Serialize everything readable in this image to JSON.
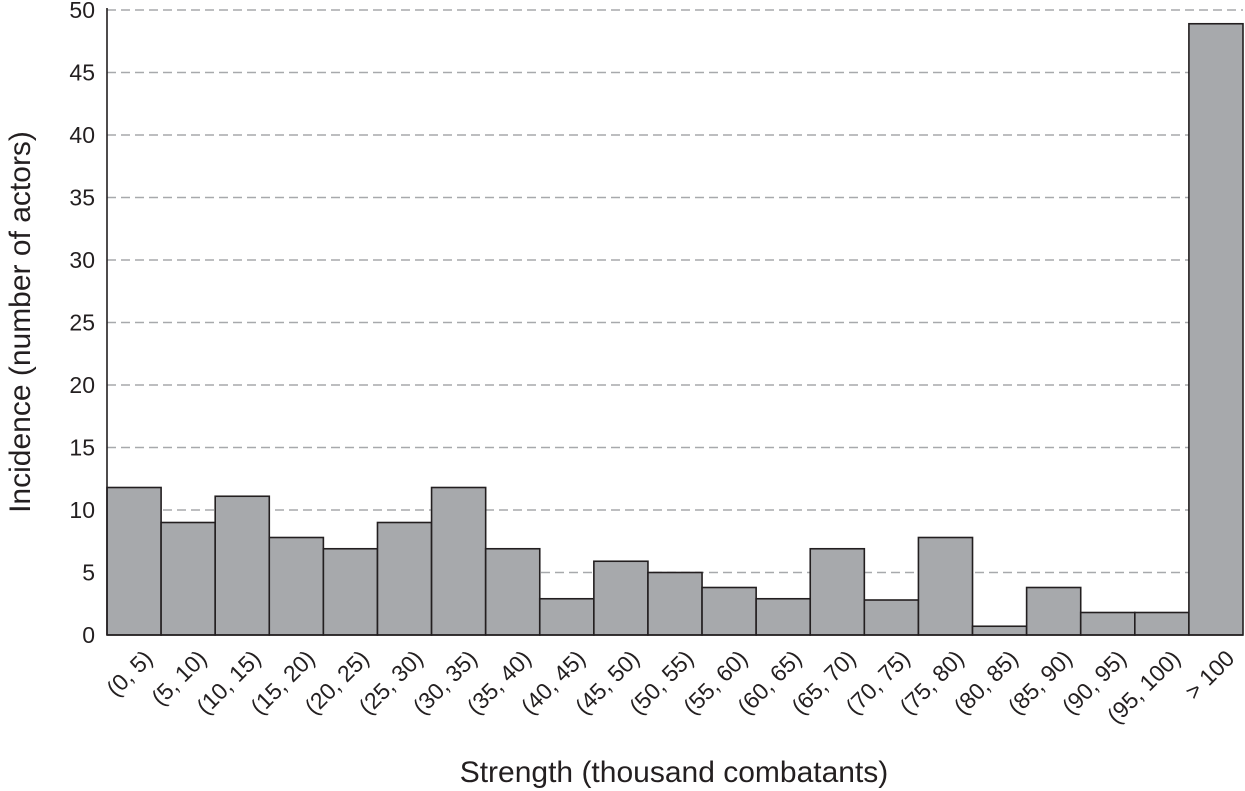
{
  "chart_data": {
    "type": "bar",
    "title": "",
    "xlabel": "Strength (thousand combatants)",
    "ylabel": "Incidence (number of actors)",
    "categories": [
      "(0, 5)",
      "(5, 10)",
      "(10, 15)",
      "(15, 20)",
      "(20, 25)",
      "(25, 30)",
      "(30, 35)",
      "(35, 40)",
      "(40, 45)",
      "(45, 50)",
      "(50, 55)",
      "(55, 60)",
      "(60, 65)",
      "(65, 70)",
      "(70, 75)",
      "(75, 80)",
      "(80, 85)",
      "(85, 90)",
      "(90, 95)",
      "(95, 100)",
      "> 100"
    ],
    "values": [
      11.8,
      9,
      11.1,
      7.8,
      6.9,
      9,
      11.8,
      6.9,
      2.9,
      5.9,
      5,
      3.8,
      2.9,
      6.9,
      2.8,
      7.8,
      0.7,
      3.8,
      1.8,
      1.8,
      48.9
    ],
    "ylim": [
      0,
      50
    ],
    "yticks": [
      0,
      5,
      10,
      15,
      20,
      25,
      30,
      35,
      40,
      45,
      50
    ],
    "grid": "horizontal dashed",
    "legend": "none",
    "colors": {
      "bar_fill": "#a7a9ac",
      "bar_stroke": "#231f20",
      "grid": "#a7a9ac",
      "text": "#231f20"
    }
  }
}
